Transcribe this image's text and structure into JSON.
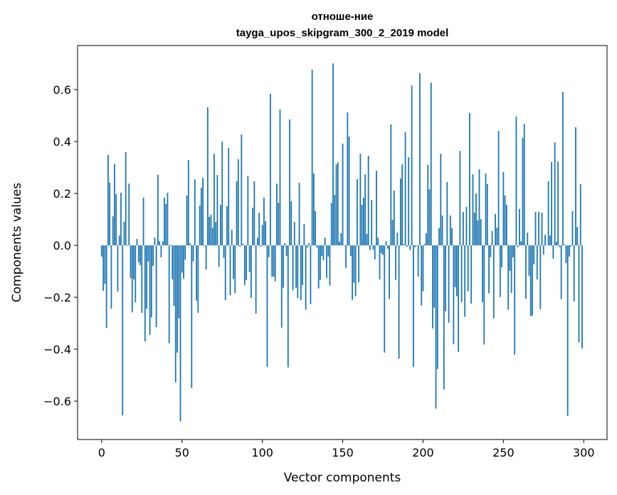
{
  "chart_data": {
    "type": "bar",
    "title_line1": "отноше-ние",
    "title_line2": "tayga_upos_skipgram_300_2_2019 model",
    "xlabel": "Vector components",
    "ylabel": "Components values",
    "xlim": [
      -15,
      314.5
    ],
    "ylim": [
      -0.748,
      0.77
    ],
    "xticks": [
      0,
      50,
      100,
      150,
      200,
      250,
      300
    ],
    "xtick_labels": [
      "0",
      "50",
      "100",
      "150",
      "200",
      "250",
      "300"
    ],
    "yticks": [
      -0.6,
      -0.4,
      -0.2,
      0.0,
      0.2,
      0.4,
      0.6
    ],
    "ytick_labels": [
      "−0.6",
      "−0.4",
      "−0.2",
      "0.0",
      "0.2",
      "0.4",
      "0.6"
    ],
    "grid": false,
    "bar_color": "#1f77b4",
    "values": [
      -0.043,
      -0.175,
      -0.148,
      -0.318,
      0.349,
      0.242,
      -0.244,
      0.112,
      0.313,
      0.197,
      -0.178,
      0.038,
      0.203,
      -0.655,
      0.091,
      0.359,
      -0.002,
      0.238,
      -0.126,
      -0.258,
      -0.131,
      -0.219,
      0.025,
      -0.065,
      -0.076,
      -0.26,
      0.184,
      -0.37,
      -0.244,
      -0.062,
      -0.345,
      -0.277,
      -0.079,
      0.03,
      -0.315,
      0.272,
      0.016,
      -0.046,
      0.016,
      0.184,
      0.159,
      0.203,
      -0.377,
      0.003,
      -0.131,
      -0.233,
      -0.528,
      -0.413,
      -0.281,
      -0.678,
      -0.105,
      -0.128,
      -0.055,
      0.192,
      0.329,
      0.007,
      -0.55,
      -0.062,
      0.254,
      -0.213,
      -0.26,
      0.153,
      0.222,
      0.26,
      -0.003,
      -0.093,
      0.532,
      0.11,
      0.118,
      0.068,
      0.353,
      0.09,
      0.271,
      -0.082,
      0.156,
      0.4,
      -0.048,
      -0.211,
      0.151,
      0.375,
      -0.192,
      0.06,
      -0.128,
      -0.184,
      0.247,
      0.332,
      -0.005,
      0.427,
      0.005,
      -0.153,
      -0.134,
      0.268,
      -0.103,
      -0.203,
      0.145,
      0.247,
      -0.263,
      0.03,
      0.126,
      -0.005,
      0.079,
      0.184,
      0.093,
      -0.468,
      -0.046,
      0.584,
      -0.121,
      -0.121,
      -0.139,
      0.238,
      0.164,
      0.523,
      -0.317,
      -0.163,
      0.008,
      -0.041,
      -0.47,
      0.485,
      0.17,
      -0.173,
      0.09,
      -0.163,
      -0.203,
      0.241,
      -0.211,
      -0.153,
      0.082,
      -0.248,
      -0.008,
      0.008,
      -0.226,
      0.677,
      0.277,
      0.132,
      -0.008,
      -0.166,
      -0.133,
      -0.041,
      -0.057,
      0.03,
      -0.125,
      -0.043,
      -0.155,
      0.164,
      0.701,
      0.195,
      0.312,
      0.32,
      0.014,
      0.047,
      0.392,
      -0.002,
      -0.087,
      0.512,
      0.419,
      -0.041,
      -0.21,
      -0.144,
      -0.196,
      0.255,
      -0.142,
      0.353,
      0.156,
      0.184,
      0.274,
      0.044,
      0.345,
      -0.018,
      0.175,
      -0.016,
      -0.054,
      0.288,
      0.03,
      -0.131,
      -0.03,
      -0.037,
      -0.413,
      0.016,
      -0.013,
      -0.207,
      0.466,
      0.099,
      0.211,
      -0.133,
      0.049,
      -0.437,
      0.258,
      0.312,
      0.005,
      0.436,
      -0.005,
      0.34,
      -0.018,
      0.616,
      -0.468,
      -0.007,
      -0.002,
      -0.12,
      0.663,
      -0.232,
      -0.177,
      0.005,
      0.047,
      0.31,
      0.216,
      0.627,
      -0.32,
      -0.24,
      -0.629,
      -0.476,
      0.066,
      0.353,
      0.115,
      -0.555,
      -0.254,
      0.244,
      -0.298,
      0.115,
      0.066,
      -0.381,
      -0.161,
      -0.196,
      -0.41,
      0.364,
      -0.218,
      0.129,
      -0.275,
      0.148,
      -0.177,
      0.51,
      -0.224,
      0.274,
      0.126,
      0.2,
      0.096,
      0.293,
      0.101,
      -0.218,
      -0.382,
      0.277,
      0.236,
      -0.185,
      -0.046,
      0.055,
      -0.281,
      0.121,
      0.068,
      0.441,
      -0.199,
      -0.084,
      0.283,
      0.192,
      0.156,
      -0.248,
      -0.098,
      -0.183,
      -0.046,
      -0.421,
      0.496,
      -0.007,
      0.14,
      0.016,
      0.414,
      0.468,
      -0.205,
      0.049,
      -0.117,
      -0.273,
      -0.27,
      -0.073,
      0.129,
      -0.131,
      0.129,
      -0.246,
      0.126,
      -0.035,
      0.041,
      -0.002,
      0.247,
      0.038,
      0.321,
      -0.051,
      0.397,
      0.014,
      0.323,
      -0.007,
      -0.207,
      0.592,
      0.003,
      -0.068,
      -0.657,
      -0.043,
      -0.005,
      0.132,
      -0.216,
      0.455,
      0.071,
      -0.374,
      0.236,
      -0.397
    ]
  }
}
